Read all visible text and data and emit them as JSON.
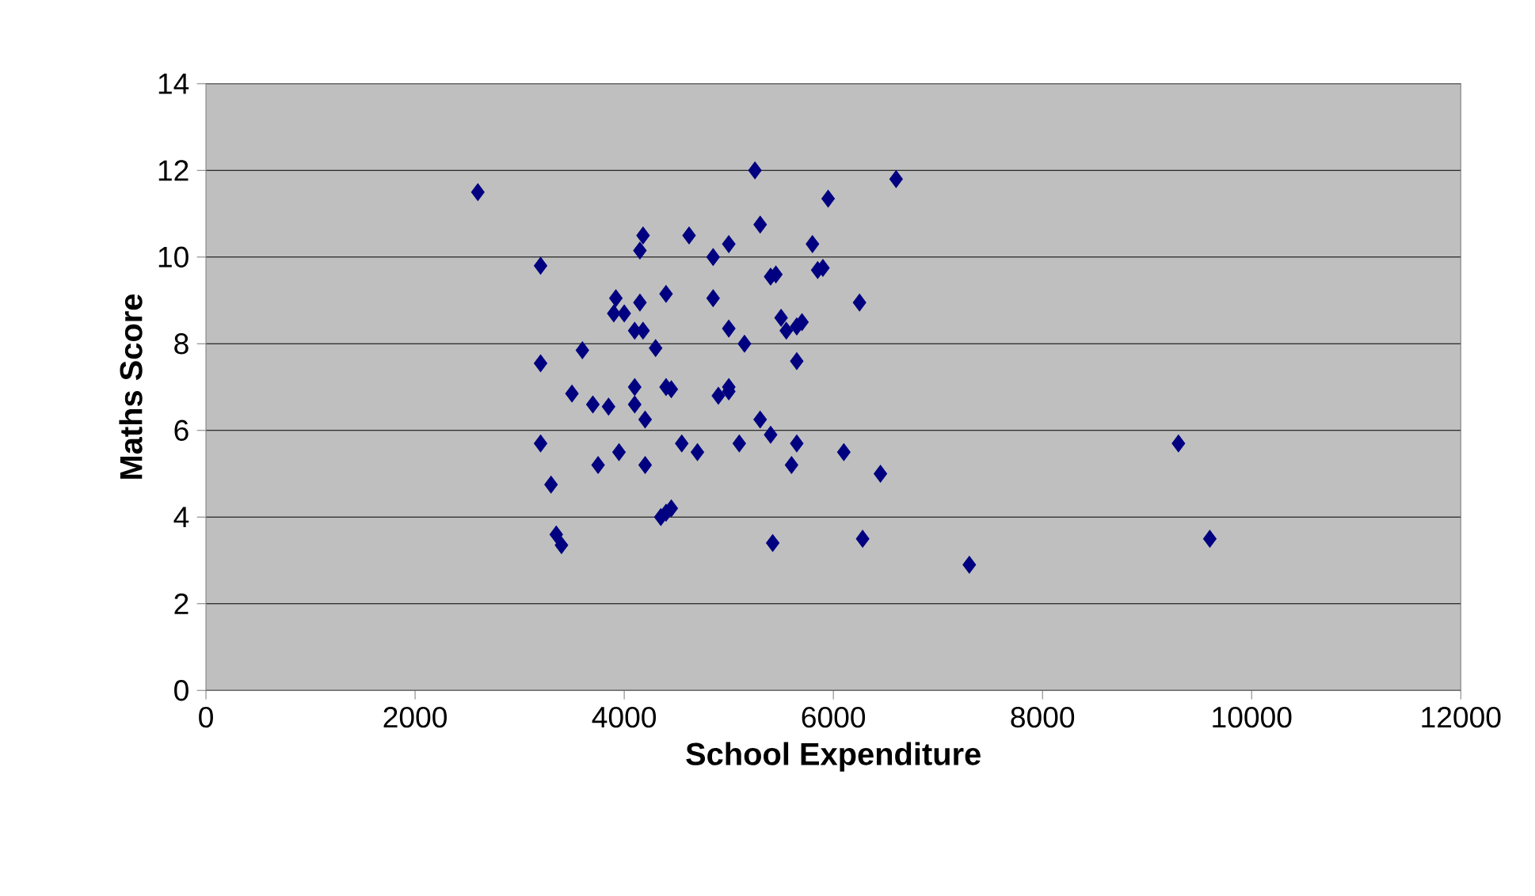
{
  "chart_data": {
    "type": "scatter",
    "xlabel": "School Expenditure",
    "ylabel": "Maths Score",
    "color": "#000080",
    "marker": "diamond",
    "grid": "y",
    "xlim": [
      0,
      12000
    ],
    "ylim": [
      0,
      14
    ],
    "xticks": [
      0,
      2000,
      4000,
      6000,
      8000,
      10000,
      12000
    ],
    "yticks": [
      0,
      2,
      4,
      6,
      8,
      10,
      12,
      14
    ],
    "x": [
      2600,
      3200,
      3200,
      3200,
      3300,
      3350,
      3400,
      3500,
      3600,
      3700,
      3750,
      3850,
      3900,
      3920,
      3950,
      4000,
      4100,
      4100,
      4100,
      4150,
      4150,
      4180,
      4180,
      4200,
      4200,
      4300,
      4350,
      4400,
      4400,
      4400,
      4450,
      4450,
      4550,
      4620,
      4700,
      4850,
      4850,
      4900,
      5000,
      5000,
      5000,
      5000,
      5100,
      5150,
      5250,
      5300,
      5300,
      5400,
      5450,
      5400,
      5420,
      5500,
      5550,
      5600,
      5650,
      5700,
      5650,
      5650,
      5800,
      5850,
      5900,
      5950,
      6100,
      6250,
      6280,
      6450,
      6600,
      7300,
      9300,
      9600
    ],
    "values": [
      11.5,
      9.8,
      7.55,
      5.7,
      4.75,
      3.6,
      3.35,
      6.85,
      7.85,
      6.6,
      5.2,
      6.55,
      8.7,
      9.05,
      5.5,
      8.7,
      7.0,
      6.6,
      8.3,
      10.15,
      8.95,
      10.5,
      8.3,
      6.25,
      5.2,
      7.9,
      4.0,
      4.1,
      9.15,
      7.0,
      4.2,
      6.95,
      5.7,
      10.5,
      5.5,
      10.0,
      9.05,
      6.8,
      10.3,
      8.35,
      7.0,
      6.9,
      5.7,
      8.0,
      12.0,
      10.75,
      6.25,
      9.55,
      9.6,
      5.9,
      3.4,
      8.6,
      8.3,
      5.2,
      8.4,
      8.5,
      7.6,
      5.7,
      10.3,
      9.7,
      9.75,
      11.35,
      5.5,
      8.95,
      3.5,
      5.0,
      11.8,
      2.9,
      5.7,
      3.5
    ]
  }
}
